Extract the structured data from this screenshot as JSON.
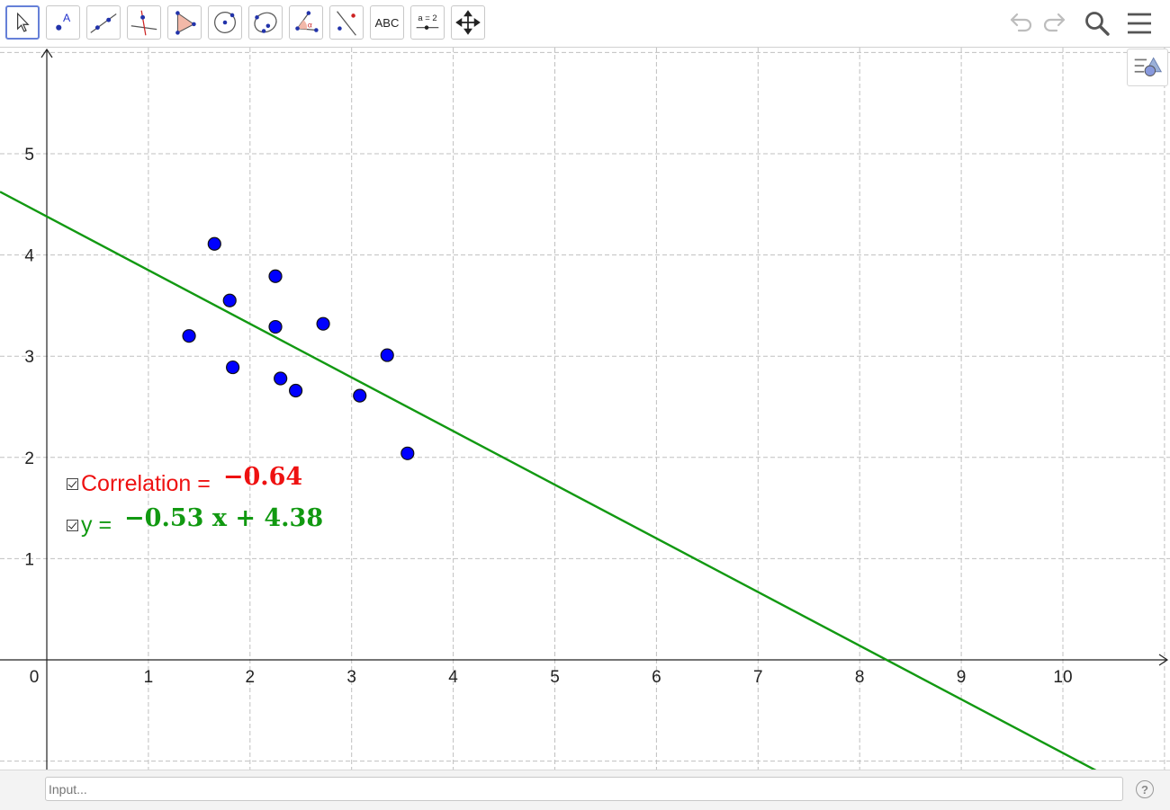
{
  "toolbar": {
    "tools": [
      {
        "name": "move-tool",
        "icon": "cursor-arrow-icon",
        "active": true
      },
      {
        "name": "point-tool",
        "icon": "point-with-label-icon",
        "label": "A"
      },
      {
        "name": "line-tool",
        "icon": "line-through-points-icon"
      },
      {
        "name": "perpendicular-tool",
        "icon": "perpendicular-line-icon"
      },
      {
        "name": "polygon-tool",
        "icon": "polygon-icon"
      },
      {
        "name": "circle-center-point-tool",
        "icon": "circle-center-point-icon"
      },
      {
        "name": "conic-tool",
        "icon": "ellipse-icon"
      },
      {
        "name": "angle-tool",
        "icon": "angle-icon",
        "label": "α"
      },
      {
        "name": "reflect-tool",
        "icon": "reflect-about-line-icon"
      },
      {
        "name": "text-tool",
        "icon": "text-icon",
        "label": "ABC"
      },
      {
        "name": "slider-tool",
        "icon": "slider-icon",
        "label": "a = 2"
      },
      {
        "name": "move-graphics-view-tool",
        "icon": "move-view-arrows-icon"
      }
    ],
    "right": [
      "undo-icon",
      "redo-icon",
      "search-icon",
      "menu-icon"
    ]
  },
  "graphics": {
    "x_ticks": [
      "0",
      "1",
      "2",
      "3",
      "4",
      "5",
      "6",
      "7",
      "8",
      "9",
      "10"
    ],
    "y_ticks": [
      "1",
      "2",
      "3",
      "4",
      "5"
    ],
    "points": [
      {
        "x": 1.65,
        "y": 4.11
      },
      {
        "x": 2.25,
        "y": 3.79
      },
      {
        "x": 1.8,
        "y": 3.55
      },
      {
        "x": 2.25,
        "y": 3.29
      },
      {
        "x": 2.72,
        "y": 3.32
      },
      {
        "x": 1.4,
        "y": 3.2
      },
      {
        "x": 3.35,
        "y": 3.01
      },
      {
        "x": 1.83,
        "y": 2.89
      },
      {
        "x": 2.3,
        "y": 2.78
      },
      {
        "x": 2.45,
        "y": 2.66
      },
      {
        "x": 3.08,
        "y": 2.61
      },
      {
        "x": 3.55,
        "y": 2.04
      }
    ],
    "line": {
      "slope": -0.53,
      "intercept": 4.38
    },
    "colors": {
      "points": "#0000ff",
      "line": "#129912",
      "correlation": "#ee1111",
      "grid": "#c0c0c0"
    }
  },
  "correlation": {
    "label": "Correlation =",
    "value": "−0.64"
  },
  "regression": {
    "label": "y =",
    "value": "−0.53 x + 4.38"
  },
  "input": {
    "placeholder": "Input..."
  },
  "help": {
    "label": "?"
  }
}
